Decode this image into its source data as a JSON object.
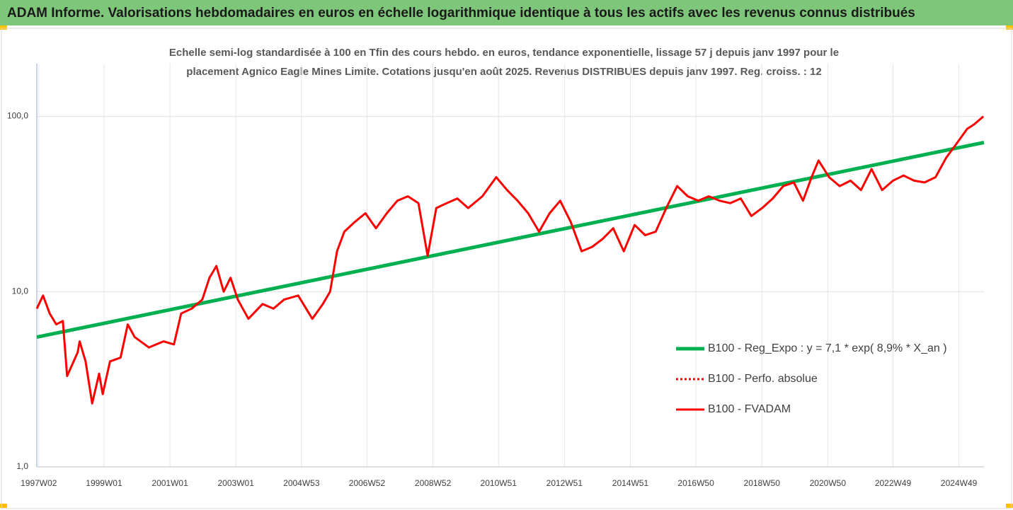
{
  "chart_data": {
    "type": "line",
    "title": "ADAM Informe. Valorisations hebdomadaires en euros en échelle logarithmique identique à tous les actifs avec les revenus connus distribués",
    "subtitle": [
      "Echelle semi-log standardisée à 100 en Tfin des cours hebdo. en euros, tendance exponentielle, lissage 57 j depuis janv 1997 pour le",
      "placement Agnico Eagle Mines Limite. Cotations jusqu'en août 2025. Revenus DISTRIBUES depuis janv 1997. Reg. croiss. : 12"
    ],
    "log_scale": true,
    "grid": true,
    "legend": "right",
    "xlim": [
      1996.96,
      2025.7
    ],
    "xticks": [
      {
        "value": 1997.02,
        "label": "1997W02"
      },
      {
        "value": 1999.0,
        "label": "1999W01"
      },
      {
        "value": 2001.0,
        "label": "2001W01"
      },
      {
        "value": 2003.0,
        "label": "2003W01"
      },
      {
        "value": 2004.99,
        "label": "2004W53"
      },
      {
        "value": 2006.98,
        "label": "2006W52"
      },
      {
        "value": 2008.98,
        "label": "2008W52"
      },
      {
        "value": 2010.97,
        "label": "2010W51"
      },
      {
        "value": 2012.97,
        "label": "2012W51"
      },
      {
        "value": 2014.97,
        "label": "2014W51"
      },
      {
        "value": 2016.96,
        "label": "2016W50"
      },
      {
        "value": 2018.96,
        "label": "2018W50"
      },
      {
        "value": 2020.96,
        "label": "2020W50"
      },
      {
        "value": 2022.94,
        "label": "2022W49"
      },
      {
        "value": 2024.94,
        "label": "2024W49"
      }
    ],
    "ylim": [
      1,
      200
    ],
    "yticks": [
      {
        "value": 1,
        "label": "1,0"
      },
      {
        "value": 10,
        "label": "10,0"
      },
      {
        "value": 100,
        "label": "100,0"
      }
    ],
    "series": [
      {
        "name": "B100 - Reg_Expo : y = 7,1 * exp( 8,9% *  X_an )",
        "color": "#00b050",
        "style": "solid",
        "width": 5,
        "x": [
          1996.96,
          2025.7
        ],
        "values": [
          5.5,
          71
        ]
      },
      {
        "name": "B100 - Perfo. absolue",
        "color": "#ff0000",
        "style": "dotted",
        "width": 3
      },
      {
        "name": "B100 - FVADAM",
        "color": "#ff0000",
        "style": "solid",
        "width": 3,
        "x": [
          1996.96,
          1997.15,
          1997.35,
          1997.55,
          1997.75,
          1997.88,
          1998.2,
          1998.26,
          1998.44,
          1998.64,
          1998.85,
          1998.96,
          1999.18,
          1999.5,
          1999.72,
          1999.93,
          2000.36,
          2000.8,
          2001.12,
          2001.34,
          2001.66,
          2001.98,
          2002.2,
          2002.41,
          2002.63,
          2002.84,
          2003.06,
          2003.38,
          2003.81,
          2004.14,
          2004.46,
          2004.89,
          2005.32,
          2005.64,
          2005.86,
          2006.07,
          2006.29,
          2006.61,
          2006.93,
          2007.25,
          2007.58,
          2007.9,
          2008.22,
          2008.54,
          2008.82,
          2009.08,
          2009.4,
          2009.72,
          2010.05,
          2010.48,
          2010.9,
          2011.23,
          2011.55,
          2011.87,
          2012.2,
          2012.52,
          2012.84,
          2013.16,
          2013.49,
          2013.81,
          2014.13,
          2014.45,
          2014.77,
          2015.1,
          2015.42,
          2015.74,
          2016.06,
          2016.39,
          2016.71,
          2017.03,
          2017.35,
          2017.68,
          2018.0,
          2018.32,
          2018.64,
          2018.97,
          2019.29,
          2019.61,
          2019.93,
          2020.21,
          2020.47,
          2020.68,
          2021.0,
          2021.32,
          2021.65,
          2021.97,
          2022.29,
          2022.61,
          2022.94,
          2023.26,
          2023.58,
          2023.9,
          2024.23,
          2024.55,
          2024.87,
          2025.19,
          2025.4,
          2025.68
        ],
        "values": [
          8.0,
          9.5,
          7.5,
          6.5,
          6.8,
          3.3,
          4.5,
          5.2,
          4.0,
          2.3,
          3.4,
          2.6,
          4.0,
          4.2,
          6.5,
          5.5,
          4.8,
          5.2,
          5.0,
          7.5,
          8.0,
          9.0,
          12,
          14,
          10,
          12,
          9,
          7.0,
          8.5,
          8.0,
          9.0,
          9.5,
          7.0,
          8.5,
          10,
          17,
          22,
          25,
          28,
          23,
          28,
          33,
          35,
          32,
          16,
          30,
          32,
          34,
          30,
          35,
          45,
          38,
          33,
          28,
          22,
          28,
          33,
          25,
          17,
          18,
          20,
          23,
          17,
          24,
          21,
          22,
          30,
          40,
          35,
          33,
          35,
          33,
          32,
          34,
          27,
          30,
          34,
          40,
          42,
          33,
          45,
          56,
          45,
          40,
          43,
          38,
          50,
          38,
          43,
          46,
          43,
          42,
          45,
          58,
          70,
          85,
          90,
          100
        ]
      }
    ]
  }
}
